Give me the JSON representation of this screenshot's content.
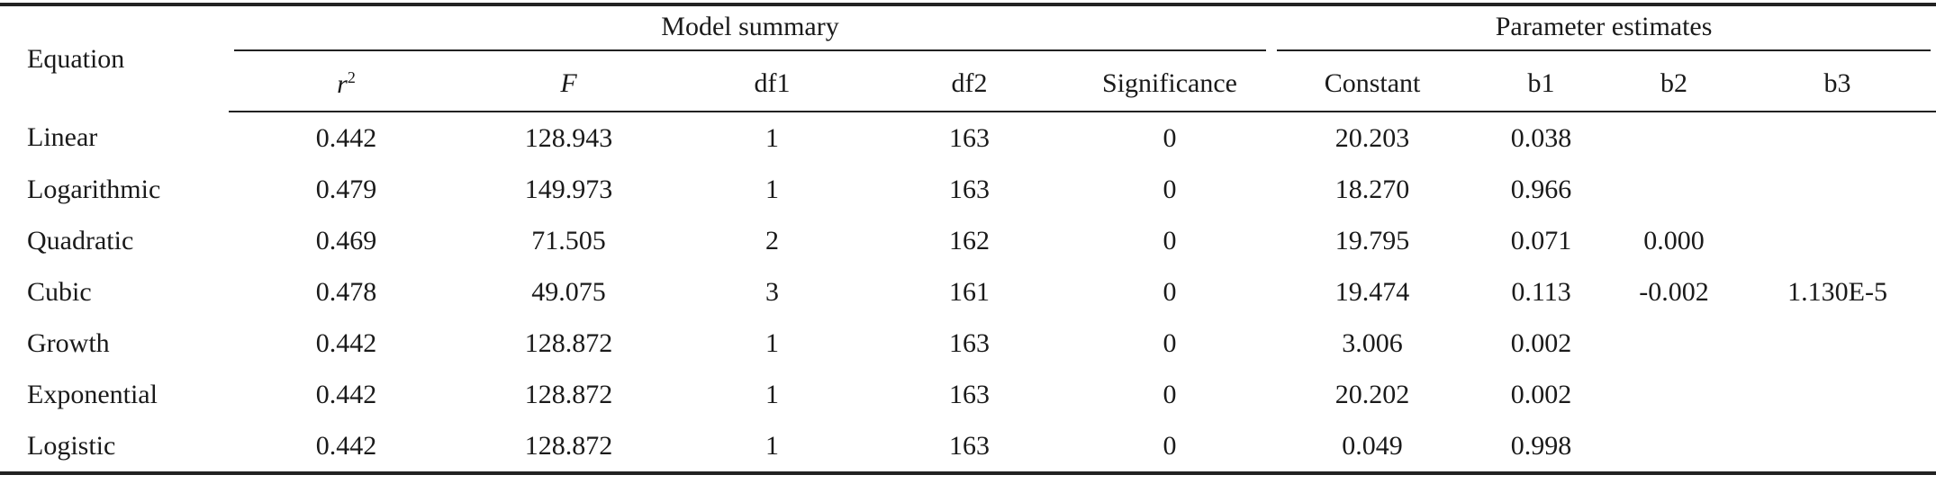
{
  "table": {
    "group_header": {
      "first": "Equation",
      "groups": [
        "Model summary",
        "Parameter estimates"
      ]
    },
    "columns": [
      {
        "text": "r",
        "sup": "2",
        "italic": true
      },
      {
        "text": "F",
        "italic": true
      },
      {
        "text": "df1"
      },
      {
        "text": "df2"
      },
      {
        "text": "Significance"
      },
      {
        "text": "Constant"
      },
      {
        "text": "b1"
      },
      {
        "text": "b2"
      },
      {
        "text": "b3"
      }
    ],
    "rows": [
      [
        "Linear",
        "0.442",
        "128.943",
        "1",
        "163",
        "0",
        "20.203",
        "0.038",
        null,
        null
      ],
      [
        "Logarithmic",
        "0.479",
        "149.973",
        "1",
        "163",
        "0",
        "18.270",
        "0.966",
        null,
        null
      ],
      [
        "Quadratic",
        "0.469",
        "71.505",
        "2",
        "162",
        "0",
        "19.795",
        "0.071",
        "0.000",
        null
      ],
      [
        "Cubic",
        "0.478",
        "49.075",
        "3",
        "161",
        "0",
        "19.474",
        "0.113",
        "-0.002",
        "1.130E-5"
      ],
      [
        "Growth",
        "0.442",
        "128.872",
        "1",
        "163",
        "0",
        "3.006",
        "0.002",
        null,
        null
      ],
      [
        "Exponential",
        "0.442",
        "128.872",
        "1",
        "163",
        "0",
        "20.202",
        "0.002",
        null,
        null
      ],
      [
        "Logistic",
        "0.442",
        "128.872",
        "1",
        "163",
        "0",
        "0.049",
        "0.998",
        null,
        null
      ]
    ]
  }
}
